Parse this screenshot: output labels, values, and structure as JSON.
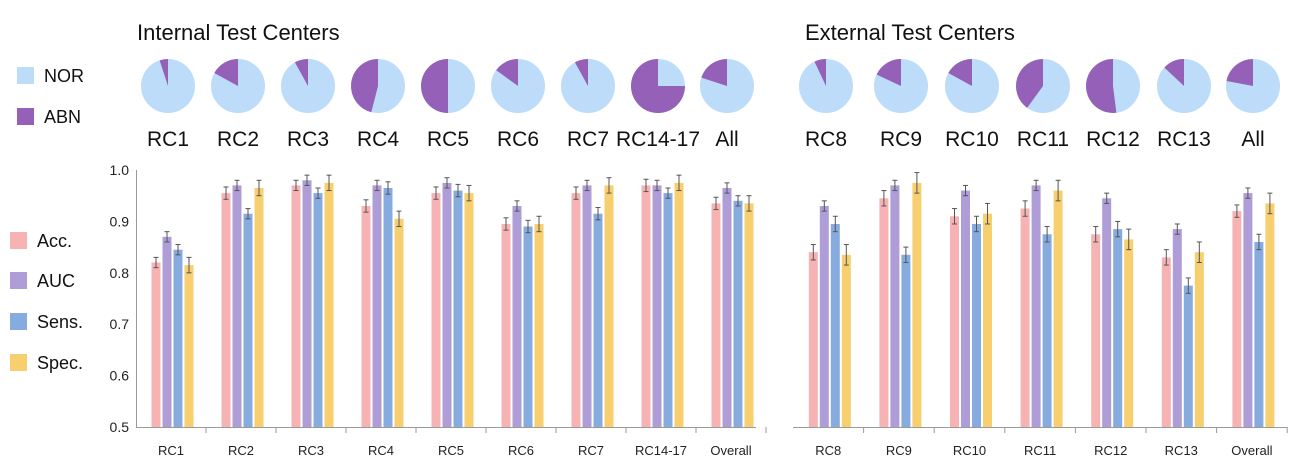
{
  "chart_data": {
    "type": "bar",
    "titles": {
      "internal": "Internal Test Centers",
      "external": "External Test Centers"
    },
    "colors": {
      "NOR": "#bcdcf9",
      "ABN": "#9460b8",
      "Acc.": "#f7b3b4",
      "AUC": "#ae9dd6",
      "Sens.": "#86acdf",
      "Spec.": "#f7cf6e"
    },
    "pie_legend": [
      "NOR",
      "ABN"
    ],
    "metric_legend": [
      "Acc.",
      "AUC",
      "Sens.",
      "Spec."
    ],
    "ylim": [
      0.5,
      1.0
    ],
    "yticks": [
      "0.5",
      "0.6",
      "0.7",
      "0.8",
      "0.9",
      "1.0"
    ],
    "pies": {
      "internal": [
        {
          "label": "RC1",
          "abn": 0.05
        },
        {
          "label": "RC2",
          "abn": 0.17
        },
        {
          "label": "RC3",
          "abn": 0.08
        },
        {
          "label": "RC4",
          "abn": 0.46
        },
        {
          "label": "RC5",
          "abn": 0.5
        },
        {
          "label": "RC6",
          "abn": 0.15
        },
        {
          "label": "RC7",
          "abn": 0.08
        },
        {
          "label": "RC14-17",
          "abn": 0.75
        },
        {
          "label": "All",
          "abn": 0.2
        }
      ],
      "external": [
        {
          "label": "RC8",
          "abn": 0.07
        },
        {
          "label": "RC9",
          "abn": 0.18
        },
        {
          "label": "RC10",
          "abn": 0.17
        },
        {
          "label": "RC11",
          "abn": 0.4
        },
        {
          "label": "RC12",
          "abn": 0.52
        },
        {
          "label": "RC13",
          "abn": 0.13
        },
        {
          "label": "All",
          "abn": 0.22
        }
      ]
    },
    "panels": [
      {
        "name": "internal",
        "categories": [
          "RC1",
          "RC2",
          "RC3",
          "RC4",
          "RC5",
          "RC6",
          "RC7",
          "RC14-17",
          "Overall"
        ],
        "series": [
          {
            "name": "Acc.",
            "values": [
              0.82,
              0.955,
              0.97,
              0.93,
              0.955,
              0.895,
              0.955,
              0.97,
              0.935
            ],
            "err": [
              0.01,
              0.012,
              0.01,
              0.012,
              0.012,
              0.012,
              0.012,
              0.012,
              0.012
            ]
          },
          {
            "name": "AUC",
            "values": [
              0.87,
              0.97,
              0.98,
              0.97,
              0.975,
              0.93,
              0.97,
              0.97,
              0.965
            ],
            "err": [
              0.01,
              0.01,
              0.01,
              0.01,
              0.01,
              0.01,
              0.01,
              0.01,
              0.01
            ]
          },
          {
            "name": "Sens.",
            "values": [
              0.845,
              0.915,
              0.955,
              0.965,
              0.96,
              0.89,
              0.915,
              0.955,
              0.94
            ],
            "err": [
              0.01,
              0.01,
              0.01,
              0.012,
              0.012,
              0.012,
              0.012,
              0.01,
              0.01
            ]
          },
          {
            "name": "Spec.",
            "values": [
              0.815,
              0.965,
              0.975,
              0.905,
              0.955,
              0.895,
              0.97,
              0.975,
              0.935
            ],
            "err": [
              0.015,
              0.015,
              0.015,
              0.015,
              0.015,
              0.015,
              0.015,
              0.015,
              0.015
            ]
          }
        ]
      },
      {
        "name": "external",
        "categories": [
          "RC8",
          "RC9",
          "RC10",
          "RC11",
          "RC12",
          "RC13",
          "Overall"
        ],
        "series": [
          {
            "name": "Acc.",
            "values": [
              0.84,
              0.945,
              0.91,
              0.925,
              0.875,
              0.83,
              0.92
            ],
            "err": [
              0.015,
              0.015,
              0.015,
              0.015,
              0.015,
              0.015,
              0.012
            ]
          },
          {
            "name": "AUC",
            "values": [
              0.93,
              0.97,
              0.96,
              0.97,
              0.945,
              0.885,
              0.955
            ],
            "err": [
              0.01,
              0.01,
              0.01,
              0.01,
              0.01,
              0.01,
              0.01
            ]
          },
          {
            "name": "Sens.",
            "values": [
              0.895,
              0.835,
              0.895,
              0.875,
              0.885,
              0.775,
              0.86
            ],
            "err": [
              0.015,
              0.015,
              0.015,
              0.015,
              0.015,
              0.015,
              0.015
            ]
          },
          {
            "name": "Spec.",
            "values": [
              0.835,
              0.975,
              0.915,
              0.96,
              0.865,
              0.84,
              0.935
            ],
            "err": [
              0.02,
              0.02,
              0.02,
              0.02,
              0.02,
              0.02,
              0.02
            ]
          }
        ]
      }
    ]
  }
}
